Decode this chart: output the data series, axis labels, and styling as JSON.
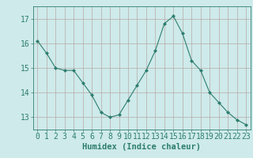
{
  "x": [
    0,
    1,
    2,
    3,
    4,
    5,
    6,
    7,
    8,
    9,
    10,
    11,
    12,
    13,
    14,
    15,
    16,
    17,
    18,
    19,
    20,
    21,
    22,
    23
  ],
  "y": [
    16.1,
    15.6,
    15.0,
    14.9,
    14.9,
    14.4,
    13.9,
    13.2,
    13.0,
    13.1,
    13.7,
    14.3,
    14.9,
    15.7,
    16.8,
    17.1,
    16.4,
    15.3,
    14.9,
    14.0,
    13.6,
    13.2,
    12.9,
    12.7
  ],
  "line_color": "#2d7d6e",
  "marker": "D",
  "marker_size": 2.0,
  "bg_color": "#ceeaea",
  "grid_color": "#b8a8a8",
  "axis_color": "#2d7d6e",
  "text_color": "#2d7d6e",
  "xlabel": "Humidex (Indice chaleur)",
  "xlabel_fontsize": 7.5,
  "tick_fontsize": 7,
  "ylim": [
    12.5,
    17.5
  ],
  "xlim": [
    -0.5,
    23.5
  ],
  "yticks": [
    13,
    14,
    15,
    16,
    17
  ],
  "xticks": [
    0,
    1,
    2,
    3,
    4,
    5,
    6,
    7,
    8,
    9,
    10,
    11,
    12,
    13,
    14,
    15,
    16,
    17,
    18,
    19,
    20,
    21,
    22,
    23
  ]
}
